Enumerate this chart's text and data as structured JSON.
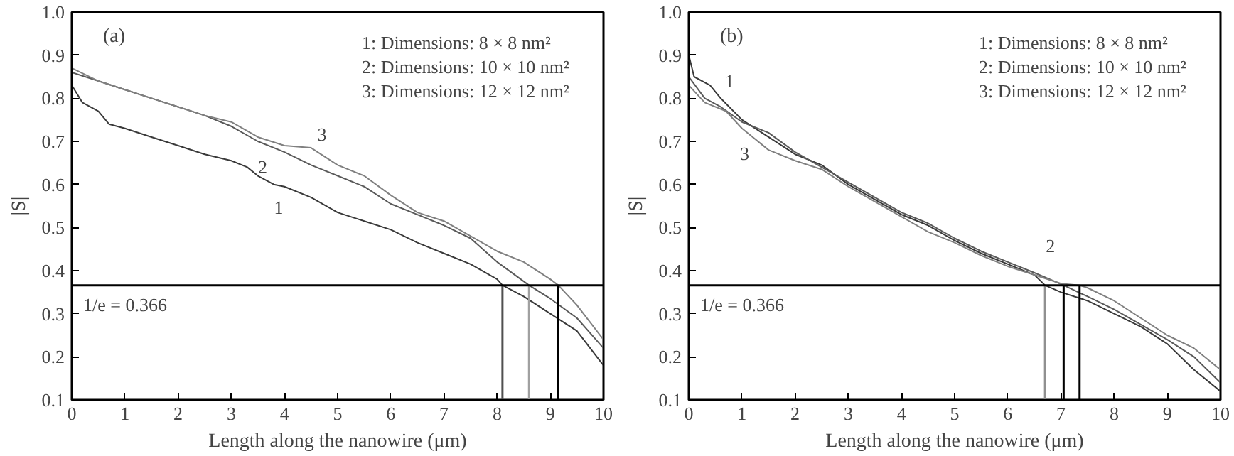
{
  "chart_data": [
    {
      "type": "line",
      "title": "(a)",
      "xlabel": "Length along the nanowire (μm)",
      "ylabel": "|S|",
      "xlim": [
        0,
        10
      ],
      "ylim": [
        0.1,
        1.0
      ],
      "xticks": [
        0,
        1,
        2,
        3,
        4,
        5,
        6,
        7,
        8,
        9,
        10
      ],
      "yticks": [
        0.1,
        0.2,
        0.3,
        0.4,
        0.5,
        0.6,
        0.7,
        0.8,
        0.9,
        {
          "value": 1.0,
          "label": "1.0"
        }
      ],
      "grid": false,
      "series": [
        {
          "color": "#3a3a3a",
          "x": [
            0,
            0.2,
            0.5,
            0.7,
            1,
            1.5,
            2,
            2.5,
            3,
            3.3,
            3.5,
            3.8,
            4,
            4.5,
            5,
            5.5,
            6,
            6.5,
            7,
            7.5,
            8,
            8.1,
            8.5,
            9,
            9.5,
            10
          ],
          "values": [
            0.83,
            0.79,
            0.77,
            0.74,
            0.73,
            0.71,
            0.69,
            0.67,
            0.655,
            0.64,
            0.62,
            0.6,
            0.595,
            0.57,
            0.535,
            0.515,
            0.495,
            0.465,
            0.44,
            0.415,
            0.38,
            0.366,
            0.34,
            0.3,
            0.26,
            0.18
          ]
        },
        {
          "color": "#5a5a5a",
          "x": [
            0,
            0.5,
            1,
            1.5,
            2,
            2.5,
            3,
            3.5,
            4,
            4.5,
            5,
            5.5,
            6,
            6.5,
            7,
            7.5,
            8,
            8.6,
            9,
            9.5,
            10
          ],
          "values": [
            0.86,
            0.84,
            0.82,
            0.8,
            0.78,
            0.76,
            0.735,
            0.7,
            0.675,
            0.645,
            0.62,
            0.595,
            0.555,
            0.53,
            0.505,
            0.475,
            0.42,
            0.366,
            0.335,
            0.29,
            0.22
          ]
        },
        {
          "color": "#808080",
          "x": [
            0,
            0.5,
            1,
            1.5,
            2,
            2.5,
            3,
            3.5,
            4,
            4.5,
            5,
            5.5,
            6,
            6.5,
            7,
            7.5,
            8,
            8.5,
            9,
            9.15,
            9.5,
            10
          ],
          "values": [
            0.87,
            0.84,
            0.82,
            0.8,
            0.78,
            0.76,
            0.745,
            0.71,
            0.69,
            0.685,
            0.645,
            0.62,
            0.575,
            0.535,
            0.515,
            0.48,
            0.445,
            0.42,
            0.38,
            0.366,
            0.32,
            0.24
          ]
        }
      ],
      "ref_lines": [
        {
          "axis": "y",
          "value": 0.366,
          "label": "1/e = 0.366",
          "color": "#000000"
        },
        {
          "axis": "x",
          "value": 8.1,
          "color": "#505050"
        },
        {
          "axis": "x",
          "value": 8.6,
          "color": "#a0a0a0"
        },
        {
          "axis": "x",
          "value": 9.15,
          "color": "#000000"
        }
      ],
      "annotations": [
        "1: Dimensions: 8 × 8 nm²",
        "2: Dimensions: 10 × 10 nm²",
        "3: Dimensions: 12 × 12 nm²",
        "1",
        "2",
        "3"
      ]
    },
    {
      "type": "line",
      "title": "(b)",
      "xlabel": "Length along the nanowire (μm)",
      "ylabel": "|S|",
      "xlim": [
        0,
        10
      ],
      "ylim": [
        0.1,
        1.0
      ],
      "xticks": [
        0,
        1,
        2,
        3,
        4,
        5,
        6,
        7,
        8,
        9,
        10
      ],
      "yticks": [
        0.1,
        0.2,
        0.3,
        0.4,
        0.5,
        0.6,
        0.7,
        0.8,
        0.9,
        {
          "value": 1.0,
          "label": "1.0"
        }
      ],
      "grid": false,
      "series": [
        {
          "color": "#3a3a3a",
          "x": [
            0,
            0.1,
            0.4,
            0.6,
            1,
            1.5,
            2,
            2.5,
            3,
            3.5,
            4,
            4.5,
            5,
            5.5,
            6,
            6.5,
            6.7,
            7,
            7.5,
            8,
            8.5,
            9,
            9.5,
            10
          ],
          "values": [
            0.9,
            0.85,
            0.83,
            0.8,
            0.75,
            0.71,
            0.67,
            0.645,
            0.6,
            0.565,
            0.53,
            0.505,
            0.47,
            0.44,
            0.415,
            0.39,
            0.366,
            0.35,
            0.33,
            0.3,
            0.27,
            0.23,
            0.17,
            0.12
          ]
        },
        {
          "color": "#5a5a5a",
          "x": [
            0,
            0.3,
            0.6,
            1,
            1.5,
            2,
            2.5,
            3,
            3.5,
            4,
            4.5,
            5,
            5.5,
            6,
            6.5,
            7.05,
            7.5,
            8,
            8.5,
            9,
            9.5,
            10
          ],
          "values": [
            0.85,
            0.8,
            0.78,
            0.745,
            0.72,
            0.675,
            0.64,
            0.605,
            0.57,
            0.535,
            0.51,
            0.475,
            0.445,
            0.42,
            0.395,
            0.366,
            0.34,
            0.31,
            0.275,
            0.24,
            0.2,
            0.14
          ]
        },
        {
          "color": "#808080",
          "x": [
            0,
            0.3,
            0.7,
            1,
            1.5,
            2,
            2.5,
            3,
            3.5,
            4,
            4.5,
            5,
            5.5,
            6,
            6.5,
            7,
            7.35,
            7.5,
            8,
            8.5,
            9,
            9.5,
            10
          ],
          "values": [
            0.83,
            0.79,
            0.77,
            0.73,
            0.68,
            0.655,
            0.635,
            0.595,
            0.56,
            0.525,
            0.49,
            0.465,
            0.435,
            0.41,
            0.39,
            0.37,
            0.366,
            0.36,
            0.33,
            0.29,
            0.25,
            0.22,
            0.17
          ]
        }
      ],
      "ref_lines": [
        {
          "axis": "y",
          "value": 0.366,
          "label": "1/e = 0.366",
          "color": "#000000"
        },
        {
          "axis": "x",
          "value": 6.7,
          "color": "#909090"
        },
        {
          "axis": "x",
          "value": 7.05,
          "color": "#000000"
        },
        {
          "axis": "x",
          "value": 7.35,
          "color": "#000000"
        }
      ],
      "annotations": [
        "1: Dimensions: 8 × 8 nm²",
        "2: Dimensions: 10 × 10 nm²",
        "3: Dimensions: 12 × 12 nm²",
        "1",
        "2",
        "3"
      ]
    }
  ]
}
